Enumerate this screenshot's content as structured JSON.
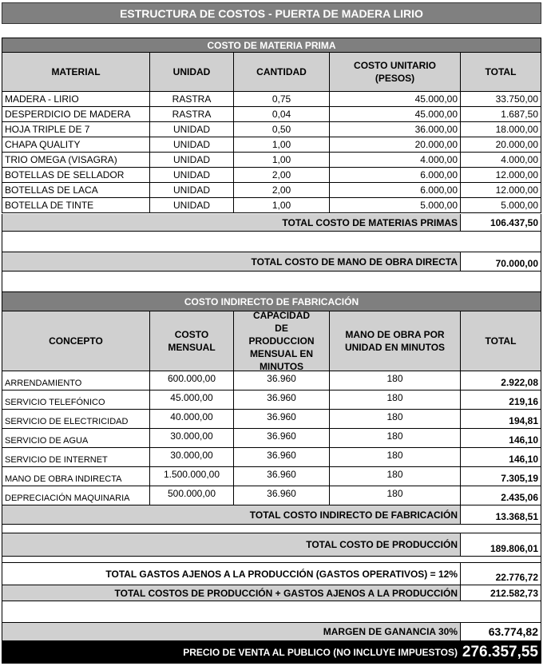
{
  "title": "ESTRUCTURA DE COSTOS - PUERTA DE MADERA LIRIO",
  "materia_prima": {
    "section_title": "COSTO DE MATERIA PRIMA",
    "headers": [
      "MATERIAL",
      "UNIDAD",
      "CANTIDAD",
      "COSTO UNITARIO (PESOS)",
      "TOTAL"
    ],
    "rows": [
      [
        "MADERA - LIRIO",
        "RASTRA",
        "0,75",
        "45.000,00",
        "33.750,00"
      ],
      [
        "DESPERDICIO DE MADERA",
        "RASTRA",
        "0,04",
        "45.000,00",
        "1.687,50"
      ],
      [
        "HOJA TRIPLE DE 7",
        "UNIDAD",
        "0,50",
        "36.000,00",
        "18.000,00"
      ],
      [
        "CHAPA QUALITY",
        "UNIDAD",
        "1,00",
        "20.000,00",
        "20.000,00"
      ],
      [
        "TRIO OMEGA (VISAGRA)",
        "UNIDAD",
        "1,00",
        "4.000,00",
        "4.000,00"
      ],
      [
        "BOTELLAS DE SELLADOR",
        "UNIDAD",
        "2,00",
        "6.000,00",
        "12.000,00"
      ],
      [
        "BOTELLAS DE LACA",
        "UNIDAD",
        "2,00",
        "6.000,00",
        "12.000,00"
      ],
      [
        "BOTELLA DE TINTE",
        "UNIDAD",
        "1,00",
        "5.000,00",
        "5.000,00"
      ]
    ],
    "total_label": "TOTAL COSTO DE MATERIAS PRIMAS",
    "total_value": "106.437,50"
  },
  "mano_obra": {
    "label": "TOTAL COSTO DE MANO DE OBRA DIRECTA",
    "value": "70.000,00"
  },
  "cif": {
    "section_title": "COSTO INDIRECTO DE FABRICACIÓN",
    "headers": [
      "CONCEPTO",
      "COSTO MENSUAL",
      "CAPACIDAD DE PRODUCCION MENSUAL EN MINUTOS",
      "MANO DE OBRA POR UNIDAD EN MINUTOS",
      "TOTAL"
    ],
    "rows": [
      [
        "ARRENDAMIENTO",
        "600.000,00",
        "36.960",
        "180",
        "2.922,08"
      ],
      [
        "SERVICIO TELEFÓNICO",
        "45.000,00",
        "36.960",
        "180",
        "219,16"
      ],
      [
        "SERVICIO DE ELECTRICIDAD",
        "40.000,00",
        "36.960",
        "180",
        "194,81"
      ],
      [
        "SERVICIO DE AGUA",
        "30.000,00",
        "36.960",
        "180",
        "146,10"
      ],
      [
        "SERVICIO DE INTERNET",
        "30.000,00",
        "36.960",
        "180",
        "146,10"
      ],
      [
        "MANO DE OBRA INDIRECTA",
        "1.500.000,00",
        "36.960",
        "180",
        "7.305,19"
      ],
      [
        "DEPRECIACIÓN MAQUINARIA",
        "500.000,00",
        "36.960",
        "180",
        "2.435,06"
      ]
    ],
    "total_label": "TOTAL COSTO INDIRECTO DE FABRICACIÓN",
    "total_value": "13.368,51"
  },
  "totals": {
    "produccion_label": "TOTAL COSTO DE PRODUCCIÓN",
    "produccion_value": "189.806,01",
    "gastos_label": "TOTAL GASTOS AJENOS A LA PRODUCCIÓN (GASTOS OPERATIVOS) = 12%",
    "gastos_value": "22.776,72",
    "suma_label": "TOTAL COSTOS DE PRODUCCIÓN + GASTOS AJENOS A LA PRODUCCIÓN",
    "suma_value": "212.582,73",
    "margen_label": "MARGEN DE GANANCIA 30%",
    "margen_value": "63.774,82",
    "precio_label": "PRECIO DE VENTA AL PUBLICO (NO INCLUYE IMPUESTOS)",
    "precio_value": "276.357,55"
  }
}
